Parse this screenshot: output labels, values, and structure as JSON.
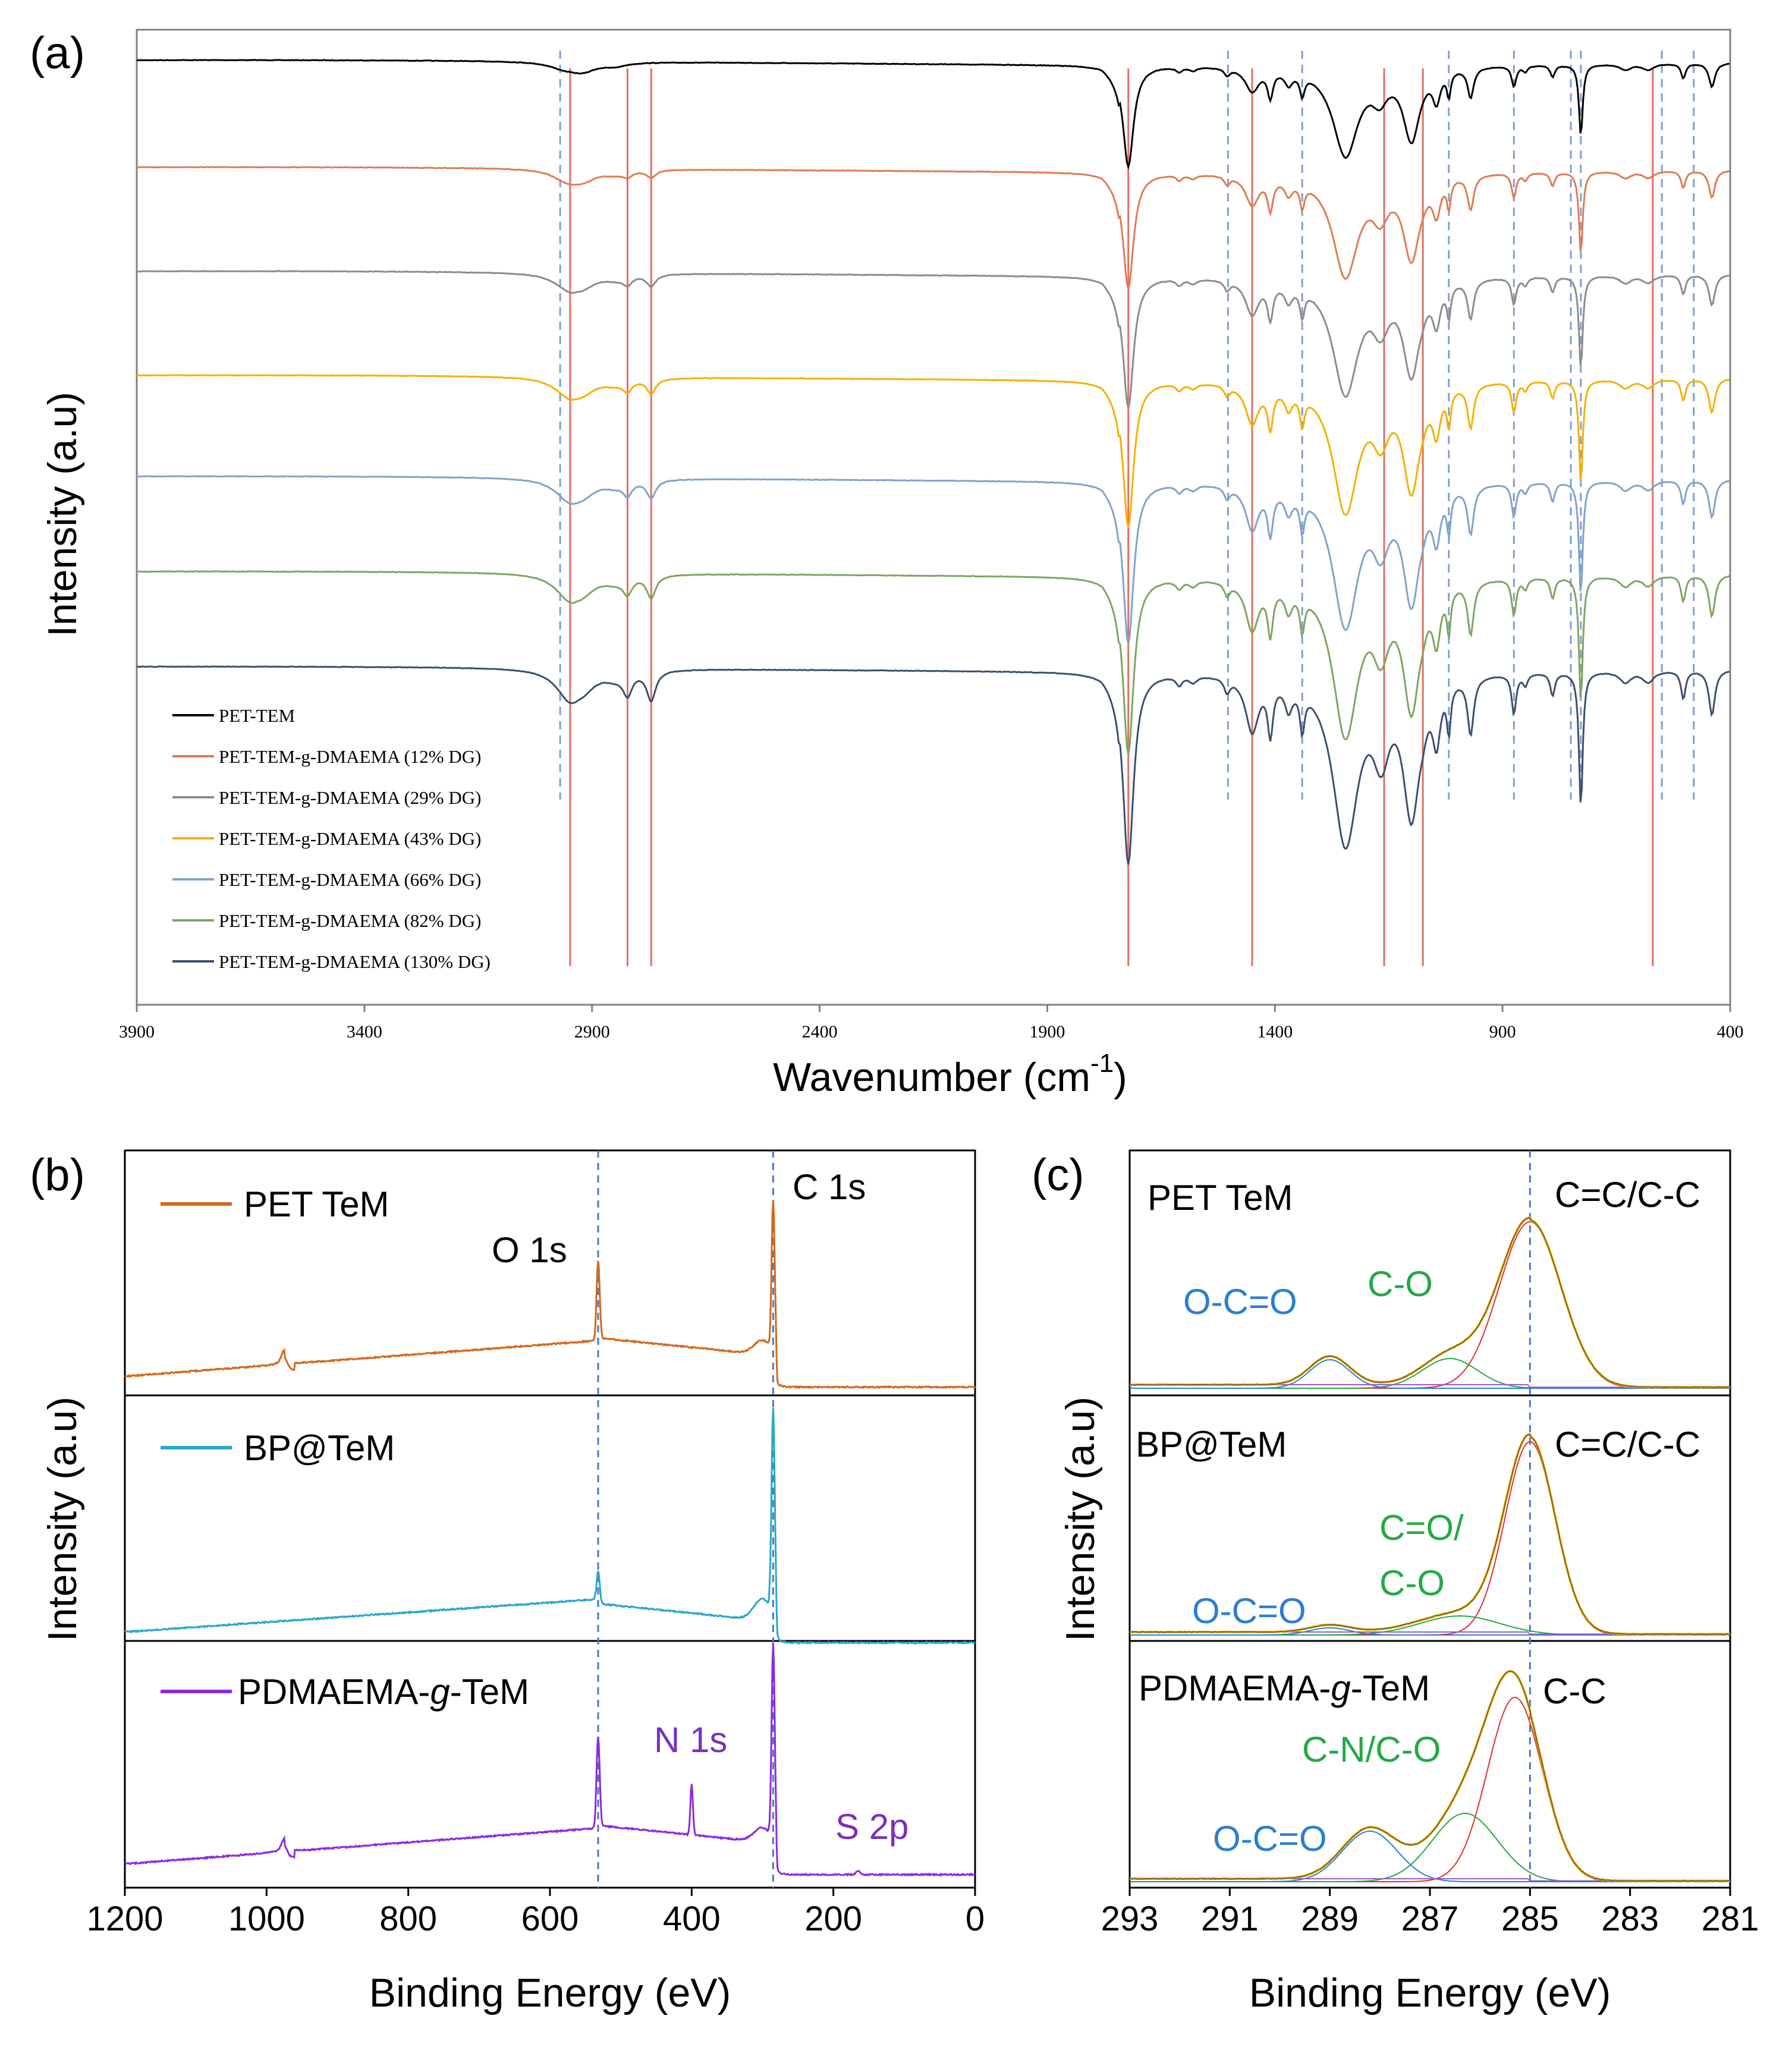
{
  "chart_data": [
    {
      "panel_label": "(a)",
      "type": "line",
      "xlabel": "Wavenumber (cm",
      "xlabel_sup": "-1",
      "xlabel_close": ")",
      "ylabel": "Intensity (a.u)",
      "xlim": [
        3900,
        400
      ],
      "xticks": [
        "3900",
        "3400",
        "2900",
        "2400",
        "1900",
        "1400",
        "900",
        "400"
      ],
      "legend_position": "bottom-left",
      "series": [
        {
          "name": "PET-TEM",
          "color": "#000000"
        },
        {
          "name": "PET-TEM-g-DMAEMA (12% DG)",
          "color": "#e07b54"
        },
        {
          "name": "PET-TEM-g-DMAEMA (29% DG)",
          "color": "#8c8c8c"
        },
        {
          "name": "PET-TEM-g-DMAEMA (43% DG)",
          "color": "#f5b000"
        },
        {
          "name": "PET-TEM-g-DMAEMA (66% DG)",
          "color": "#7fa3cc"
        },
        {
          "name": "PET-TEM-g-DMAEMA (82% DG)",
          "color": "#7ea560"
        },
        {
          "name": "PET-TEM-g-DMAEMA (130% DG)",
          "color": "#3b5070"
        }
      ],
      "red_reference_lines": [
        2948,
        2822,
        2770,
        1722,
        1450,
        1160,
        1075,
        570
      ],
      "blue_dashed_reference_lines": [
        2970,
        1503,
        1340,
        1018,
        875,
        750,
        728,
        550,
        480
      ]
    },
    {
      "panel_label": "(b)",
      "type": "line",
      "xlabel": "Binding Energy (eV)",
      "ylabel": "Intensity (a.u)",
      "xlim": [
        1200,
        0
      ],
      "xticks": [
        "1200",
        "1000",
        "800",
        "600",
        "400",
        "200",
        "0"
      ],
      "reference_lines": [
        532,
        285
      ],
      "series": [
        {
          "name": "PET TeM",
          "color": "#d2691e"
        },
        {
          "name": "BP@TeM",
          "color": "#2aa7c9"
        },
        {
          "name": "PDMAEMA-g-TeM",
          "name_parts": [
            "PDMAEMA-",
            "g",
            "-TeM"
          ],
          "color": "#8a2be2"
        }
      ],
      "annotations": [
        {
          "text": "C 1s",
          "color": "#000000"
        },
        {
          "text": "O 1s",
          "color": "#000000"
        },
        {
          "text": "N 1s",
          "color": "#7b2fbf"
        },
        {
          "text": "S 2p",
          "color": "#7b2fbf"
        }
      ]
    },
    {
      "panel_label": "(c)",
      "type": "line",
      "xlabel": "Binding Energy (eV)",
      "ylabel": "Intensity (a.u)",
      "xlim": [
        293,
        281
      ],
      "xticks": [
        "293",
        "291",
        "289",
        "287",
        "285",
        "283",
        "281"
      ],
      "reference_lines": [
        285.0
      ],
      "panels": [
        {
          "name": "PET TeM",
          "peaks": [
            {
              "label": "C=C/C-C",
              "center": 285.0
            },
            {
              "label": "C-O",
              "center": 286.6
            },
            {
              "label": "O-C=O",
              "center": 289.0
            }
          ]
        },
        {
          "name": "BP@TeM",
          "peaks": [
            {
              "label": "C=C/C-C",
              "center": 285.0
            },
            {
              "label": "C=O/",
              "label2": "C-O",
              "center": 286.4
            },
            {
              "label": "O-C=O",
              "center": 289.0
            }
          ]
        },
        {
          "name": "PDMAEMA-g-TeM",
          "name_parts": [
            "PDMAEMA-",
            "g",
            "-TeM"
          ],
          "peaks": [
            {
              "label": "C-C",
              "center": 285.3
            },
            {
              "label": "C-N/C-O",
              "center": 286.3
            },
            {
              "label": "O-C=O",
              "center": 288.2
            }
          ]
        }
      ]
    }
  ]
}
